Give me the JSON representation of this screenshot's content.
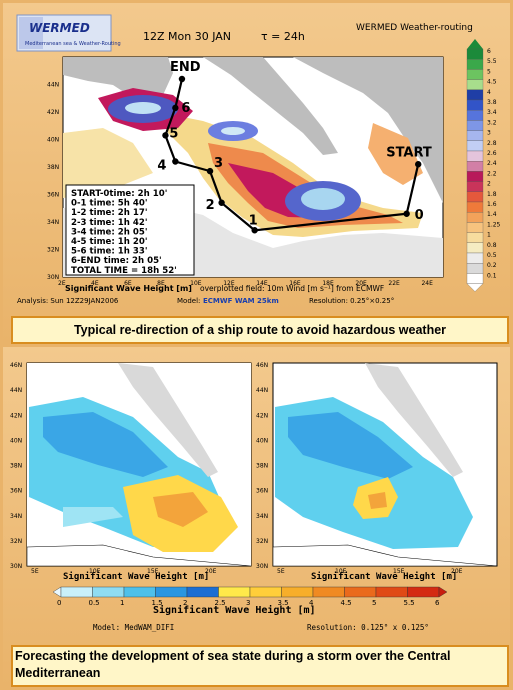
{
  "top": {
    "logo_text": "WERMED",
    "logo_sub": "Mediterranean sea & Weather-Routing",
    "header_title": "12Z Mon 30 JAN",
    "tau_label": "τ = 24h",
    "app_title": "WERMED Weather-routing",
    "waypoints": [
      {
        "label": "START",
        "lon": 23.5,
        "lat": 38.2
      },
      {
        "label": "0",
        "lon": 22.8,
        "lat": 34.6
      },
      {
        "label": "1",
        "lon": 13.6,
        "lat": 33.4
      },
      {
        "label": "2",
        "lon": 11.6,
        "lat": 35.4
      },
      {
        "label": "3",
        "lon": 10.9,
        "lat": 37.7
      },
      {
        "label": "4",
        "lon": 8.8,
        "lat": 38.4
      },
      {
        "label": "5",
        "lon": 8.2,
        "lat": 40.3
      },
      {
        "label": "6",
        "lon": 8.8,
        "lat": 42.3
      },
      {
        "label": "END",
        "lon": 9.2,
        "lat": 44.4
      }
    ],
    "times": [
      "START-0time: 2h 10'",
      "0-1 time: 5h 40'",
      "1-2 time: 2h 17'",
      "2-3 time: 1h 42'",
      "3-4 time: 2h 05'",
      "4-5 time: 1h 20'",
      "5-6 time: 1h 33'",
      "6-END time: 2h 05'",
      "TOTAL TIME = 18h 52'"
    ],
    "lat_ticks": [
      "44N",
      "42N",
      "40N",
      "38N",
      "36N",
      "34N",
      "32N",
      "30N"
    ],
    "lon_ticks": [
      "2E",
      "4E",
      "6E",
      "8E",
      "10E",
      "12E",
      "14E",
      "16E",
      "18E",
      "20E",
      "22E",
      "24E"
    ],
    "footer_title": "Significant Wave Height [m]",
    "footer_overplot": "overplotted field: 10m Wind [m s⁻¹] from ECMWF",
    "analysis": "Analysis: Sun 12Z29JAN2006",
    "model_label": "Model:",
    "model_name": "ECMWF WAM 25km",
    "resolution": "Resolution: 0.25°×0.25°",
    "scale_values": [
      "6",
      "5.5",
      "5",
      "4.5",
      "4",
      "3.8",
      "3.4",
      "3.2",
      "3",
      "2.8",
      "2.6",
      "2.4",
      "2.2",
      "2",
      "1.8",
      "1.6",
      "1.4",
      "1.25",
      "1",
      "0.8",
      "0.5",
      "0.2",
      "0.1"
    ],
    "caption": "Typical re-direction of a ship route to avoid hazardous weather"
  },
  "bottom": {
    "lat_ticks": [
      "46N",
      "44N",
      "42N",
      "40N",
      "38N",
      "36N",
      "34N",
      "32N",
      "30N"
    ],
    "lon_ticks": [
      "5E",
      "10E",
      "15E",
      "20E"
    ],
    "left_title": "Significant Wave Height [m]",
    "right_title": "Significant Wave Height [m]",
    "colorbar_ticks": [
      "0",
      "0.5",
      "1",
      "1.5",
      "2",
      "2.5",
      "3",
      "3.5",
      "4",
      "4.5",
      "5",
      "5.5",
      "6"
    ],
    "colorbar_title": "Significant Wave Height [m]",
    "model": "Model: MedWAM_DIFI",
    "resolution": "Resolution: 0.125° x 0.125°",
    "caption": "Forecasting the development of sea state during a storm over the Central Mediterranean"
  },
  "colors": {
    "accent_orange": "#d98d1f",
    "caption_bg": "#fff6c8",
    "route_line": "#000000"
  }
}
